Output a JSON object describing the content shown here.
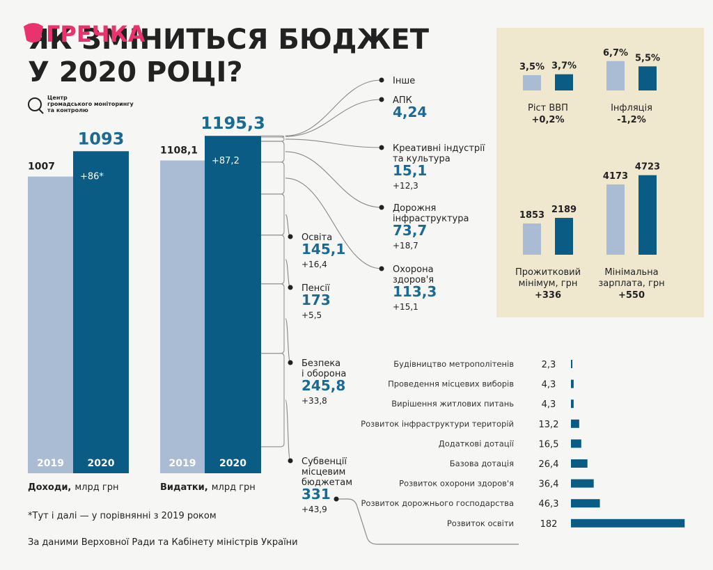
{
  "logo": "ГРЕЧКА",
  "title": [
    "ЯК ЗМІНИТЬСЯ БЮДЖЕТ",
    "У 2020 РОЦІ?"
  ],
  "organization": [
    "Центр",
    "громадського моніторингу",
    "та контролю"
  ],
  "footnote": "*Тут і далі — у порівнянні з 2019  роком",
  "source": "За даними Верховної Ради та Кабінету міністрів України",
  "chart_data": [
    {
      "type": "bar",
      "x_label": "Доходи,",
      "unit": "млрд грн",
      "categories": [
        "2019",
        "2020"
      ],
      "values": [
        1007,
        1093
      ],
      "colors": [
        "#a9bcd3",
        "#0b5c85"
      ],
      "annotation": "+86*",
      "ylim": [
        0,
        1370
      ]
    },
    {
      "type": "bar",
      "x_label": "Видатки,",
      "unit": "млрд грн",
      "categories": [
        "2019",
        "2020"
      ],
      "values": [
        1108.1,
        1195.3
      ],
      "value_labels": [
        "1108,1",
        "1195,3"
      ],
      "colors": [
        "#a9bcd3",
        "#0b5c85"
      ],
      "annotation": "+87,2",
      "ylim": [
        0,
        1430
      ],
      "breakdown": [
        {
          "name": [
            "Інше"
          ]
        },
        {
          "name": [
            "АПК"
          ],
          "value": 4.24,
          "value_label": "4,24"
        },
        {
          "name": [
            "Креативні індустрії",
            "та культура"
          ],
          "value": 15.1,
          "value_label": "15,1",
          "change": 12.3,
          "change_label": "+12,3"
        },
        {
          "name": [
            "Дорожня",
            "інфраструктура"
          ],
          "value": 73.7,
          "value_label": "73,7",
          "change": 18.7,
          "change_label": "+18,7"
        },
        {
          "name": [
            "Охорона",
            "здоров'я"
          ],
          "value": 113.3,
          "value_label": "113,3",
          "change": 15.1,
          "change_label": "+15,1"
        },
        {
          "name": [
            "Освіта"
          ],
          "value": 145.1,
          "value_label": "145,1",
          "change": 16.4,
          "change_label": "+16,4"
        },
        {
          "name": [
            "Пенсії"
          ],
          "value": 173,
          "change": 5.5,
          "change_label": "+5,5"
        },
        {
          "name": [
            "Безпека",
            "і оборона"
          ],
          "value": 245.8,
          "value_label": "245,8",
          "change": 33.8,
          "change_label": "+33,8"
        },
        {
          "name": [
            "Субвенції",
            "місцевим",
            "бюджетам"
          ],
          "value": 331,
          "change": 43.9,
          "change_label": "+43,9"
        }
      ]
    },
    {
      "type": "bar",
      "title": [
        "Ріст ВВП"
      ],
      "values": [
        3.5,
        3.7
      ],
      "value_labels": [
        "3,5%",
        "3,7%"
      ],
      "colors": [
        "#a9bcd3",
        "#0b5c85"
      ],
      "annotation": "+0,2%",
      "ylim": [
        0,
        10
      ]
    },
    {
      "type": "bar",
      "title": [
        "Інфляція"
      ],
      "values": [
        6.7,
        5.5
      ],
      "value_labels": [
        "6,7%",
        "5,5%"
      ],
      "colors": [
        "#a9bcd3",
        "#0b5c85"
      ],
      "annotation": "-1,2%",
      "ylim": [
        0,
        10
      ]
    },
    {
      "type": "bar",
      "title": [
        "Прожитковий",
        "мінімум, грн"
      ],
      "values": [
        1853,
        2189
      ],
      "colors": [
        "#a9bcd3",
        "#0b5c85"
      ],
      "annotation": "+336",
      "ylim": [
        0,
        5000
      ]
    },
    {
      "type": "bar",
      "title": [
        "Мінімальна",
        "зарплата, грн"
      ],
      "values": [
        4173,
        4723
      ],
      "colors": [
        "#a9bcd3",
        "#0b5c85"
      ],
      "annotation": "+550",
      "ylim": [
        0,
        5000
      ]
    },
    {
      "type": "barh",
      "categories": [
        "Будівництво метрополітенів",
        "Проведення місцевих виборів",
        "Вирішення житлових питань",
        "Розвиток інфраструктури територій",
        "Додаткові дотації",
        "Базова дотація",
        "Розвиток охорони здоров'я",
        "Розвиток дорожнього господарства",
        "Розвиток освіти"
      ],
      "values": [
        2.3,
        4.3,
        4.3,
        13.2,
        16.5,
        26.4,
        36.4,
        46.3,
        182
      ],
      "value_labels": [
        "2,3",
        "4,3",
        "4,3",
        "13,2",
        "16,5",
        "26,4",
        "36,4",
        "46,3",
        "182"
      ],
      "color": "#0b5c85",
      "xlim": [
        0,
        185
      ]
    }
  ]
}
